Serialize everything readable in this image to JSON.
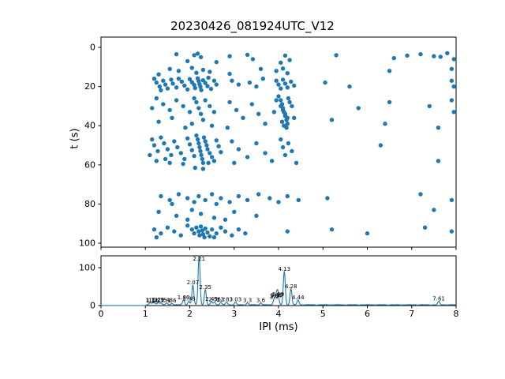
{
  "title": "20230426_081924UTC_V12",
  "colors": {
    "accent": "#1f77b4",
    "axis": "#000000",
    "background": "#ffffff"
  },
  "chart_data": [
    {
      "type": "scatter",
      "title": "20230426_081924UTC_V12",
      "xlabel": "",
      "ylabel": "t (s)",
      "xlim": [
        0,
        8
      ],
      "ylim": [
        100,
        0
      ],
      "yticks": [
        0,
        20,
        40,
        60,
        80,
        100
      ],
      "marker_color": "#1f77b4",
      "points": [
        [
          1.7,
          3.5
        ],
        [
          2.1,
          4.0
        ],
        [
          2.18,
          3.2
        ],
        [
          2.25,
          5.0
        ],
        [
          2.9,
          4.5
        ],
        [
          3.3,
          3.8
        ],
        [
          3.42,
          6.0
        ],
        [
          4.15,
          4.2
        ],
        [
          4.25,
          6.5
        ],
        [
          5.3,
          4.0
        ],
        [
          6.6,
          5.5
        ],
        [
          7.2,
          3.5
        ],
        [
          7.5,
          4.5
        ],
        [
          7.8,
          3.0
        ],
        [
          7.95,
          6.0
        ],
        [
          2.6,
          7.5
        ],
        [
          1.95,
          7.0
        ],
        [
          4.05,
          7.8
        ],
        [
          6.9,
          4.2
        ],
        [
          7.65,
          4.8
        ],
        [
          1.55,
          11
        ],
        [
          1.75,
          12
        ],
        [
          2.05,
          10.5
        ],
        [
          2.15,
          13
        ],
        [
          2.3,
          11.5
        ],
        [
          2.45,
          12.5
        ],
        [
          3.6,
          11
        ],
        [
          3.95,
          12
        ],
        [
          4.1,
          10.8
        ],
        [
          4.2,
          13.2
        ],
        [
          6.5,
          12
        ],
        [
          7.9,
          11
        ],
        [
          2.9,
          13.5
        ],
        [
          1.3,
          13.8
        ],
        [
          1.2,
          16
        ],
        [
          1.25,
          18
        ],
        [
          1.32,
          20
        ],
        [
          1.4,
          17
        ],
        [
          1.45,
          19
        ],
        [
          1.5,
          21
        ],
        [
          1.58,
          16.5
        ],
        [
          1.62,
          18.5
        ],
        [
          1.7,
          20.5
        ],
        [
          1.75,
          16
        ],
        [
          1.82,
          17.5
        ],
        [
          1.88,
          19.5
        ],
        [
          1.95,
          21.5
        ],
        [
          2.0,
          16.2
        ],
        [
          2.05,
          17.8
        ],
        [
          2.1,
          19.2
        ],
        [
          2.12,
          20.8
        ],
        [
          2.18,
          15.8
        ],
        [
          2.2,
          17.2
        ],
        [
          2.22,
          18.8
        ],
        [
          2.24,
          20.2
        ],
        [
          2.26,
          21.8
        ],
        [
          2.3,
          16.8
        ],
        [
          2.35,
          18.2
        ],
        [
          2.4,
          19.8
        ],
        [
          2.48,
          21.2
        ],
        [
          2.55,
          17
        ],
        [
          2.6,
          19
        ],
        [
          2.42,
          15.5
        ],
        [
          1.35,
          21.9
        ],
        [
          2.95,
          17
        ],
        [
          3.1,
          19
        ],
        [
          3.35,
          18
        ],
        [
          3.5,
          20
        ],
        [
          3.65,
          16
        ],
        [
          3.95,
          17
        ],
        [
          4.0,
          19
        ],
        [
          4.05,
          21
        ],
        [
          4.1,
          16.5
        ],
        [
          4.15,
          18.5
        ],
        [
          4.2,
          20.5
        ],
        [
          4.28,
          17.5
        ],
        [
          4.35,
          19.5
        ],
        [
          5.05,
          18
        ],
        [
          5.6,
          20
        ],
        [
          7.9,
          17
        ],
        [
          7.95,
          20
        ],
        [
          4.0,
          25
        ],
        [
          4.05,
          27
        ],
        [
          4.08,
          29
        ],
        [
          4.1,
          31
        ],
        [
          4.12,
          33
        ],
        [
          4.15,
          35
        ],
        [
          4.18,
          37
        ],
        [
          4.2,
          39
        ],
        [
          4.22,
          26
        ],
        [
          4.25,
          28
        ],
        [
          4.05,
          30
        ],
        [
          4.1,
          32
        ],
        [
          4.15,
          34
        ],
        [
          4.2,
          36
        ],
        [
          4.08,
          38
        ],
        [
          4.12,
          40
        ],
        [
          4.18,
          41
        ],
        [
          3.95,
          27
        ],
        [
          3.9,
          33
        ],
        [
          4.3,
          30
        ],
        [
          4.35,
          36
        ],
        [
          1.25,
          26
        ],
        [
          1.4,
          29
        ],
        [
          1.55,
          32
        ],
        [
          1.7,
          27
        ],
        [
          1.85,
          30
        ],
        [
          2.0,
          33
        ],
        [
          2.1,
          26
        ],
        [
          2.15,
          28
        ],
        [
          2.2,
          31
        ],
        [
          2.25,
          34
        ],
        [
          2.35,
          27
        ],
        [
          2.45,
          30
        ],
        [
          2.55,
          33
        ],
        [
          1.3,
          38
        ],
        [
          1.6,
          36
        ],
        [
          2.05,
          39
        ],
        [
          2.3,
          37
        ],
        [
          2.5,
          40
        ],
        [
          1.9,
          41
        ],
        [
          1.15,
          31
        ],
        [
          2.9,
          28
        ],
        [
          3.05,
          32
        ],
        [
          3.2,
          36
        ],
        [
          3.4,
          29
        ],
        [
          3.55,
          34
        ],
        [
          3.7,
          39
        ],
        [
          2.85,
          41
        ],
        [
          5.8,
          31
        ],
        [
          6.5,
          28
        ],
        [
          7.4,
          30
        ],
        [
          7.9,
          27
        ],
        [
          7.95,
          33
        ],
        [
          6.4,
          39
        ],
        [
          7.6,
          41
        ],
        [
          5.2,
          37
        ],
        [
          1.15,
          47
        ],
        [
          1.2,
          50
        ],
        [
          1.28,
          53
        ],
        [
          1.35,
          46
        ],
        [
          1.42,
          49
        ],
        [
          1.5,
          52
        ],
        [
          1.58,
          55
        ],
        [
          1.65,
          48
        ],
        [
          1.72,
          51
        ],
        [
          1.8,
          54
        ],
        [
          1.88,
          57
        ],
        [
          1.95,
          46.5
        ],
        [
          2.0,
          49.5
        ],
        [
          2.05,
          52.5
        ],
        [
          2.1,
          55.5
        ],
        [
          2.15,
          45
        ],
        [
          2.18,
          47
        ],
        [
          2.2,
          49
        ],
        [
          2.22,
          51
        ],
        [
          2.24,
          53
        ],
        [
          2.26,
          55
        ],
        [
          2.28,
          57
        ],
        [
          2.3,
          59
        ],
        [
          2.32,
          46
        ],
        [
          2.35,
          48
        ],
        [
          2.38,
          50
        ],
        [
          2.4,
          52
        ],
        [
          2.45,
          54
        ],
        [
          2.5,
          56
        ],
        [
          2.55,
          58
        ],
        [
          2.6,
          47.5
        ],
        [
          2.65,
          50.5
        ],
        [
          2.7,
          53.5
        ],
        [
          1.25,
          58
        ],
        [
          1.55,
          59
        ],
        [
          1.85,
          59.5
        ],
        [
          2.42,
          59
        ],
        [
          1.1,
          55
        ],
        [
          1.45,
          57
        ],
        [
          2.95,
          48
        ],
        [
          3.1,
          52
        ],
        [
          3.3,
          56
        ],
        [
          3.5,
          49
        ],
        [
          3.7,
          54
        ],
        [
          3.85,
          58
        ],
        [
          3.0,
          59
        ],
        [
          4.05,
          47
        ],
        [
          4.1,
          51
        ],
        [
          4.15,
          55
        ],
        [
          4.22,
          49
        ],
        [
          4.3,
          53
        ],
        [
          6.3,
          50
        ],
        [
          7.6,
          58
        ],
        [
          4.4,
          59
        ],
        [
          2.12,
          61.5
        ],
        [
          2.3,
          62
        ],
        [
          1.35,
          76
        ],
        [
          1.55,
          78
        ],
        [
          1.75,
          75
        ],
        [
          1.95,
          77
        ],
        [
          2.1,
          79
        ],
        [
          2.2,
          76
        ],
        [
          2.35,
          78
        ],
        [
          2.5,
          75
        ],
        [
          2.7,
          77
        ],
        [
          2.9,
          79
        ],
        [
          3.1,
          76
        ],
        [
          3.3,
          78
        ],
        [
          3.55,
          75
        ],
        [
          3.8,
          77
        ],
        [
          4.0,
          79
        ],
        [
          4.2,
          76
        ],
        [
          4.45,
          78
        ],
        [
          5.1,
          77
        ],
        [
          7.2,
          75
        ],
        [
          7.9,
          78
        ],
        [
          1.6,
          80
        ],
        [
          2.6,
          80
        ],
        [
          1.3,
          84
        ],
        [
          1.7,
          86
        ],
        [
          2.05,
          83
        ],
        [
          2.25,
          85
        ],
        [
          2.55,
          87
        ],
        [
          3.0,
          84
        ],
        [
          3.5,
          86
        ],
        [
          7.5,
          83
        ],
        [
          2.8,
          88
        ],
        [
          1.95,
          88
        ],
        [
          1.2,
          93
        ],
        [
          1.35,
          95
        ],
        [
          1.5,
          92
        ],
        [
          1.65,
          94
        ],
        [
          1.8,
          96
        ],
        [
          1.95,
          91
        ],
        [
          2.05,
          93
        ],
        [
          2.1,
          95
        ],
        [
          2.15,
          92
        ],
        [
          2.2,
          94
        ],
        [
          2.22,
          96
        ],
        [
          2.25,
          91.5
        ],
        [
          2.28,
          93.5
        ],
        [
          2.3,
          95.5
        ],
        [
          2.35,
          92.5
        ],
        [
          2.4,
          94.5
        ],
        [
          2.45,
          96.5
        ],
        [
          2.5,
          93
        ],
        [
          2.6,
          95
        ],
        [
          2.7,
          92
        ],
        [
          2.8,
          94
        ],
        [
          2.95,
          96
        ],
        [
          3.1,
          93
        ],
        [
          3.25,
          95
        ],
        [
          4.2,
          94
        ],
        [
          5.2,
          93
        ],
        [
          6.0,
          95
        ],
        [
          7.3,
          92
        ],
        [
          7.9,
          94
        ],
        [
          1.25,
          97
        ],
        [
          2.33,
          97
        ],
        [
          2.55,
          97
        ]
      ]
    },
    {
      "type": "line",
      "xlabel": "IPI (ms)",
      "ylabel": "",
      "xlim": [
        0,
        8
      ],
      "ylim": [
        0,
        131
      ],
      "yticks": [
        0,
        100
      ],
      "xticks": [
        0,
        1,
        2,
        3,
        4,
        5,
        6,
        7,
        8
      ],
      "line_color": "#1f77b4",
      "peaks": [
        {
          "x": 1.1,
          "height": 5,
          "label": "1.1"
        },
        {
          "x": 1.16,
          "height": 4,
          "label": "1.16"
        },
        {
          "x": 1.21,
          "height": 5,
          "label": "1.21"
        },
        {
          "x": 1.29,
          "height": 6,
          "label": "1.29"
        },
        {
          "x": 1.35,
          "height": 5,
          "label": "1.35"
        },
        {
          "x": 1.48,
          "height": 5,
          "label": "1.48"
        },
        {
          "x": 1.6,
          "height": 4,
          "label": "1.6"
        },
        {
          "x": 1.86,
          "height": 13,
          "label": "1.86"
        },
        {
          "x": 1.98,
          "height": 9,
          "label": "1.98"
        },
        {
          "x": 2.07,
          "height": 52,
          "label": "2.07"
        },
        {
          "x": 2.21,
          "height": 130,
          "label": "2.21"
        },
        {
          "x": 2.35,
          "height": 40,
          "label": "2.35"
        },
        {
          "x": 2.49,
          "height": 8,
          "label": "2.49"
        },
        {
          "x": 2.56,
          "height": 7,
          "label": "2.56"
        },
        {
          "x": 2.7,
          "height": 6,
          "label": "2.7"
        },
        {
          "x": 2.83,
          "height": 7,
          "label": "2.83"
        },
        {
          "x": 3.03,
          "height": 7,
          "label": "3.03"
        },
        {
          "x": 3.3,
          "height": 5,
          "label": "3.3"
        },
        {
          "x": 3.6,
          "height": 5,
          "label": "3.6"
        },
        {
          "x": 3.9,
          "height": 14,
          "label": "3.9"
        },
        {
          "x": 3.94,
          "height": 17,
          "label": "3.94"
        },
        {
          "x": 3.97,
          "height": 19,
          "label": "3.97"
        },
        {
          "x": 3.99,
          "height": 21,
          "label": "3.99"
        },
        {
          "x": 4.13,
          "height": 88,
          "label": "4.13"
        },
        {
          "x": 4.28,
          "height": 42,
          "label": "4.28"
        },
        {
          "x": 4.44,
          "height": 13,
          "label": "4.44"
        },
        {
          "x": 7.61,
          "height": 9,
          "label": "7.61"
        }
      ]
    }
  ]
}
